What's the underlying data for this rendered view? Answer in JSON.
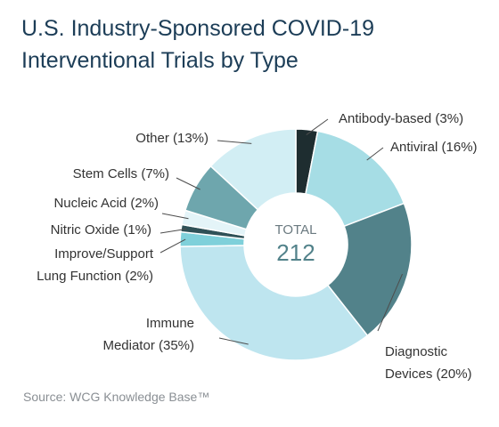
{
  "chart_data": {
    "type": "pie",
    "title": [
      "U.S. Industry-Sponsored COVID-19",
      "Interventional Trials by Type"
    ],
    "center_label": "TOTAL",
    "total": "212",
    "source": "Source: WCG Knowledge Base™",
    "slices": [
      {
        "label": [
          "Antibody-based (3%)"
        ],
        "value": 3,
        "color": "#1e2d30"
      },
      {
        "label": [
          "Antiviral (16%)"
        ],
        "value": 16,
        "color": "#a6dde5"
      },
      {
        "label": [
          "Diagnostic",
          "Devices (20%)"
        ],
        "value": 20,
        "color": "#52828a"
      },
      {
        "label": [
          "Immune",
          "Mediator (35%)"
        ],
        "value": 35,
        "color": "#bee5ef"
      },
      {
        "label": [
          "Improve/Support",
          "Lung Function (2%)"
        ],
        "value": 2,
        "color": "#7fd0da"
      },
      {
        "label": [
          "Nitric Oxide (1%)"
        ],
        "value": 1,
        "color": "#2f5157"
      },
      {
        "label": [
          "Nucleic Acid (2%)"
        ],
        "value": 2,
        "color": "#e4f4f8"
      },
      {
        "label": [
          "Stem Cells (7%)"
        ],
        "value": 7,
        "color": "#6ea6ad"
      },
      {
        "label": [
          "Other (13%)"
        ],
        "value": 13,
        "color": "#d2eef4"
      }
    ]
  }
}
